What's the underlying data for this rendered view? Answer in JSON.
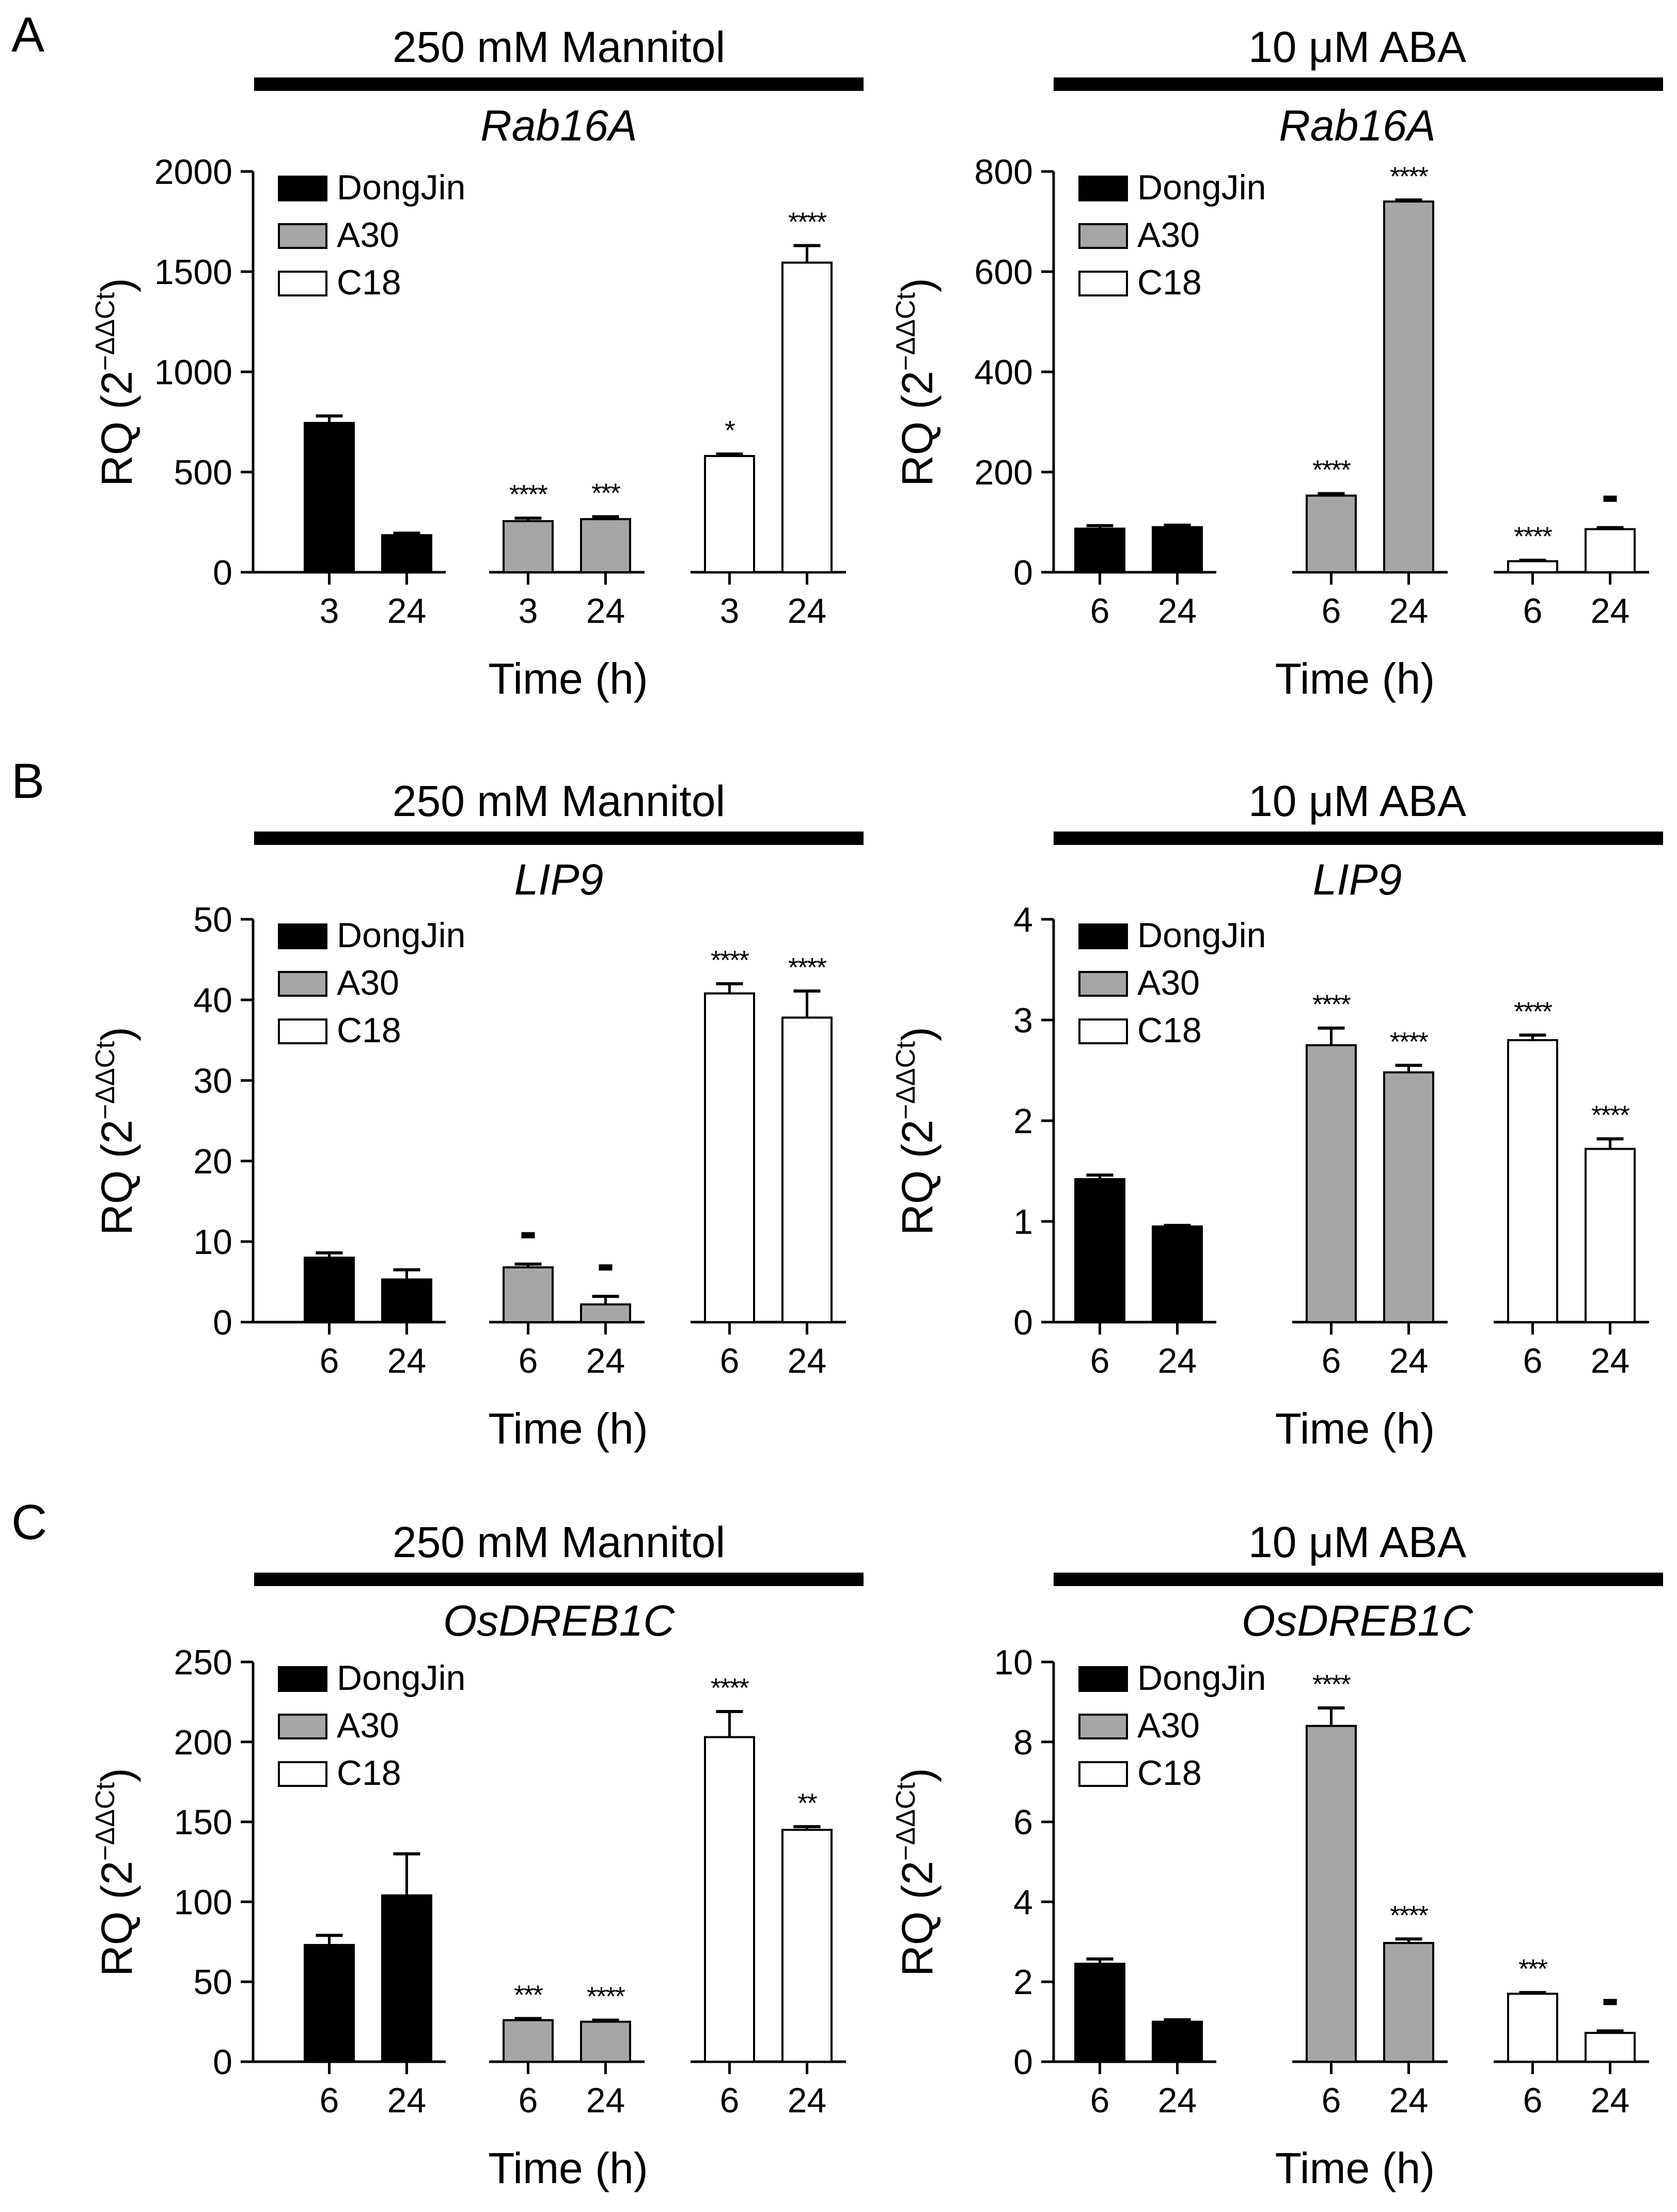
{
  "legend_labels": [
    "DongJin",
    "A30",
    "C18"
  ],
  "group_colors": [
    "#000000",
    "#a6a6a6",
    "#ffffff"
  ],
  "bar_stroke": "#000000",
  "xlabel": "Time (h)",
  "ylabel_prefix": "RQ (2",
  "ylabel_exponent": "−ΔΔCt",
  "ylabel_suffix": ")",
  "panel_letters": [
    "A",
    "B",
    "C"
  ],
  "chart_data": [
    {
      "type": "bar",
      "panel": "A",
      "treatment": "250 mM Mannitol",
      "gene": "Rab16A",
      "ylim": [
        0,
        2000
      ],
      "yticks": [
        0,
        500,
        1000,
        1500,
        2000
      ],
      "ytick_labels": [
        "0",
        "500",
        "1000",
        "1500",
        "2000"
      ],
      "categories": [
        "3",
        "24"
      ],
      "series": [
        {
          "name": "DongJin",
          "values": [
            745,
            185
          ],
          "errors": [
            35,
            10
          ],
          "sig": [
            "",
            ""
          ]
        },
        {
          "name": "A30",
          "values": [
            255,
            265
          ],
          "errors": [
            15,
            12
          ],
          "sig": [
            "****",
            "***"
          ]
        },
        {
          "name": "C18",
          "values": [
            580,
            1545
          ],
          "errors": [
            10,
            85
          ],
          "sig": [
            "*",
            "****"
          ]
        }
      ]
    },
    {
      "type": "bar",
      "panel": "A",
      "treatment": "10 μM ABA",
      "gene": "Rab16A",
      "ylim": [
        0,
        800
      ],
      "yticks": [
        0,
        200,
        400,
        600,
        800
      ],
      "ytick_labels": [
        "0",
        "200",
        "400",
        "600",
        "800"
      ],
      "categories": [
        "6",
        "24"
      ],
      "series": [
        {
          "name": "DongJin",
          "values": [
            87,
            90
          ],
          "errors": [
            6,
            4
          ],
          "sig": [
            "",
            ""
          ]
        },
        {
          "name": "A30",
          "values": [
            153,
            740
          ],
          "errors": [
            4,
            3
          ],
          "sig": [
            "****",
            "****"
          ]
        },
        {
          "name": "C18",
          "values": [
            22,
            86
          ],
          "errors": [
            2,
            3
          ],
          "sig": [
            "****",
            "-"
          ]
        }
      ]
    },
    {
      "type": "bar",
      "panel": "B",
      "treatment": "250 mM Mannitol",
      "gene": "LIP9",
      "ylim": [
        0,
        50
      ],
      "yticks": [
        0,
        10,
        20,
        30,
        40,
        50
      ],
      "ytick_labels": [
        "0",
        "10",
        "20",
        "30",
        "40",
        "50"
      ],
      "categories": [
        "6",
        "24"
      ],
      "series": [
        {
          "name": "DongJin",
          "values": [
            8,
            5.3
          ],
          "errors": [
            0.6,
            1.2
          ],
          "sig": [
            "",
            ""
          ]
        },
        {
          "name": "A30",
          "values": [
            6.8,
            2.2
          ],
          "errors": [
            0.4,
            1.0
          ],
          "sig": [
            "-",
            "-"
          ]
        },
        {
          "name": "C18",
          "values": [
            40.8,
            37.8
          ],
          "errors": [
            1.2,
            3.3
          ],
          "sig": [
            "****",
            "****"
          ]
        }
      ]
    },
    {
      "type": "bar",
      "panel": "B",
      "treatment": "10 μM ABA",
      "gene": "LIP9",
      "ylim": [
        0,
        4
      ],
      "yticks": [
        0,
        1,
        2,
        3,
        4
      ],
      "ytick_labels": [
        "0",
        "1",
        "2",
        "3",
        "4"
      ],
      "categories": [
        "6",
        "24"
      ],
      "series": [
        {
          "name": "DongJin",
          "values": [
            1.42,
            0.95
          ],
          "errors": [
            0.04,
            0.01
          ],
          "sig": [
            "",
            ""
          ]
        },
        {
          "name": "A30",
          "values": [
            2.75,
            2.48
          ],
          "errors": [
            0.17,
            0.07
          ],
          "sig": [
            "****",
            "****"
          ]
        },
        {
          "name": "C18",
          "values": [
            2.8,
            1.72
          ],
          "errors": [
            0.05,
            0.1
          ],
          "sig": [
            "****",
            "****"
          ]
        }
      ]
    },
    {
      "type": "bar",
      "panel": "C",
      "treatment": "250 mM Mannitol",
      "gene": "OsDREB1C",
      "ylim": [
        0,
        250
      ],
      "yticks": [
        0,
        50,
        100,
        150,
        200,
        250
      ],
      "ytick_labels": [
        "0",
        "50",
        "100",
        "150",
        "200",
        "250"
      ],
      "categories": [
        "6",
        "24"
      ],
      "series": [
        {
          "name": "DongJin",
          "values": [
            73,
            104
          ],
          "errors": [
            6,
            26
          ],
          "sig": [
            "",
            ""
          ]
        },
        {
          "name": "A30",
          "values": [
            26,
            25
          ],
          "errors": [
            1,
            1
          ],
          "sig": [
            "***",
            "****"
          ]
        },
        {
          "name": "C18",
          "values": [
            203,
            145
          ],
          "errors": [
            16,
            2
          ],
          "sig": [
            "****",
            "**"
          ]
        }
      ]
    },
    {
      "type": "bar",
      "panel": "C",
      "treatment": "10 μM ABA",
      "gene": "OsDREB1C",
      "ylim": [
        0,
        10
      ],
      "yticks": [
        0,
        2,
        4,
        6,
        8,
        10
      ],
      "ytick_labels": [
        "0",
        "2",
        "4",
        "6",
        "8",
        "10"
      ],
      "categories": [
        "6",
        "24"
      ],
      "series": [
        {
          "name": "DongJin",
          "values": [
            2.45,
            1.0
          ],
          "errors": [
            0.12,
            0.05
          ],
          "sig": [
            "",
            ""
          ]
        },
        {
          "name": "A30",
          "values": [
            8.4,
            2.97
          ],
          "errors": [
            0.45,
            0.1
          ],
          "sig": [
            "****",
            "****"
          ]
        },
        {
          "name": "C18",
          "values": [
            1.7,
            0.72
          ],
          "errors": [
            0.03,
            0.05
          ],
          "sig": [
            "***",
            "-"
          ]
        }
      ]
    }
  ]
}
